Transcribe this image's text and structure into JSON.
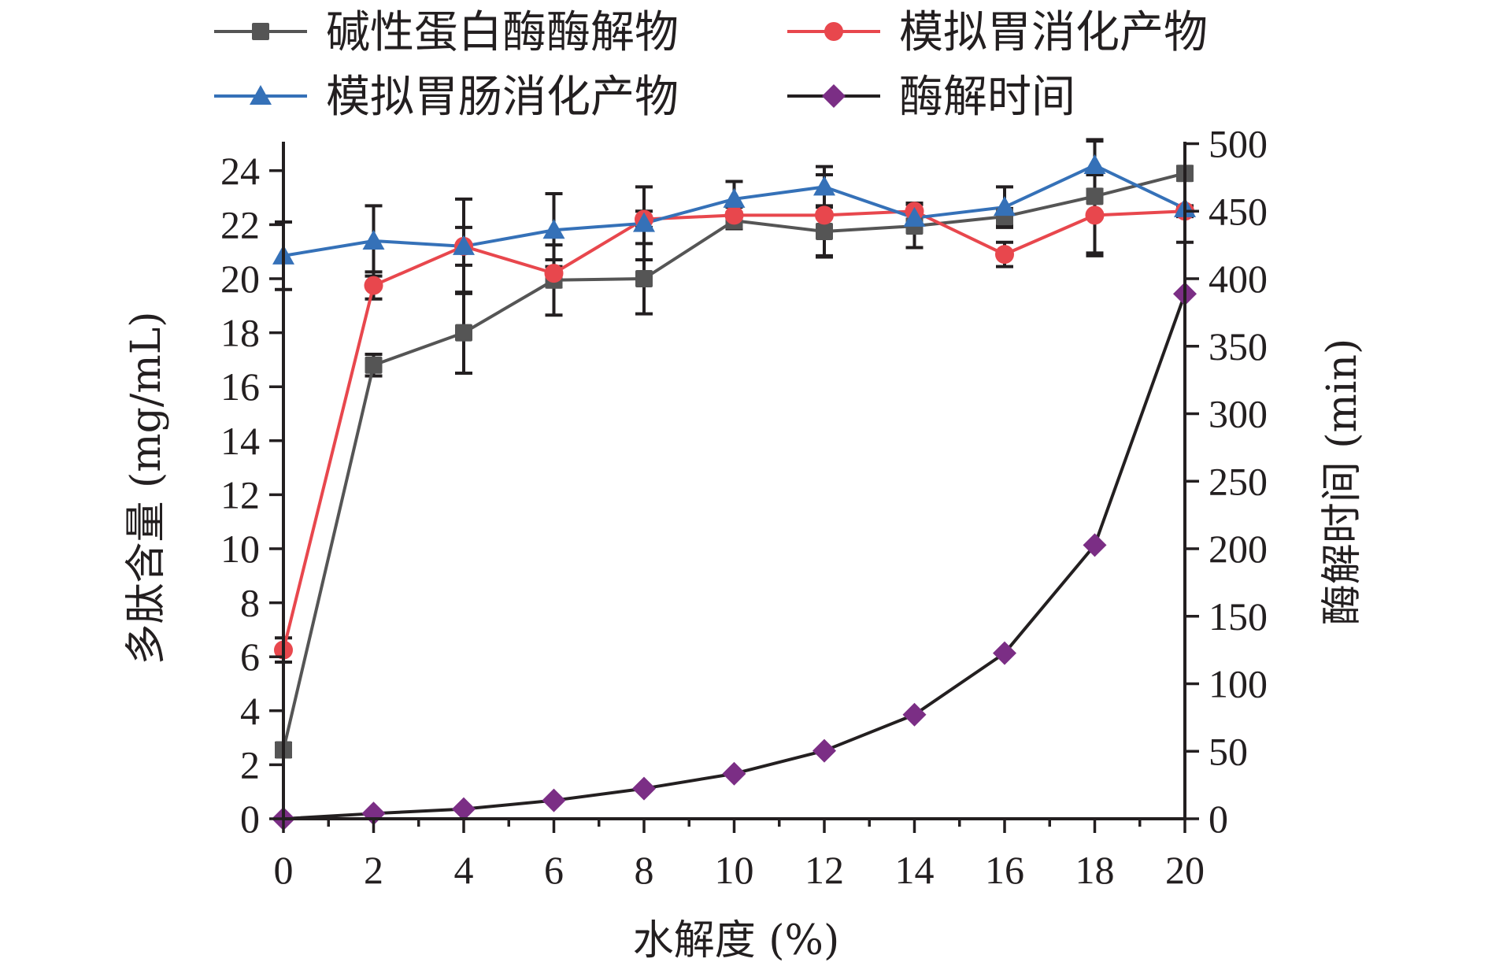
{
  "chart_data": {
    "type": "line",
    "title": "",
    "xlabel": "水解度 (%)",
    "ylabel_left": "多肽含量 (mg/mL)",
    "ylabel_right": "酶解时间 (min)",
    "x": [
      0,
      2,
      4,
      6,
      8,
      10,
      12,
      14,
      16,
      18,
      20
    ],
    "xlim": [
      0,
      20
    ],
    "ylim_left": [
      0,
      25
    ],
    "ylim_right": [
      0,
      500
    ],
    "x_ticks": [
      "0",
      "2",
      "4",
      "6",
      "8",
      "10",
      "12",
      "14",
      "16",
      "18",
      "20"
    ],
    "y_left_ticks": [
      "0",
      "2",
      "4",
      "6",
      "8",
      "10",
      "12",
      "14",
      "16",
      "18",
      "20",
      "22",
      "24"
    ],
    "y_right_ticks": [
      "0",
      "50",
      "100",
      "150",
      "200",
      "250",
      "300",
      "350",
      "400",
      "450",
      "500"
    ],
    "grid": false,
    "legend_position": "top",
    "series": [
      {
        "name": "碱性蛋白酶酶解物",
        "axis": "left",
        "marker": "square",
        "color": "#555555",
        "values": [
          2.55,
          16.8,
          18.0,
          19.95,
          20.0,
          22.15,
          21.75,
          21.95,
          22.3,
          23.05,
          23.9
        ],
        "errors": [
          0.25,
          0.4,
          1.5,
          1.3,
          1.3,
          0.3,
          0.95,
          0.8,
          0.3,
          2.1,
          0.25
        ]
      },
      {
        "name": "模拟胃消化产物",
        "axis": "left",
        "marker": "circle",
        "color": "#e8474d",
        "values": [
          6.25,
          19.75,
          21.2,
          20.2,
          22.2,
          22.35,
          22.35,
          22.5,
          20.9,
          22.35,
          22.5
        ],
        "errors": [
          0.45,
          0.5,
          0.7,
          0.5,
          0.3,
          0.3,
          1.5,
          0.3,
          0.45,
          1.5,
          0.2
        ]
      },
      {
        "name": "模拟胃肠消化产物",
        "axis": "left",
        "marker": "triangle",
        "color": "#3571b8",
        "values": [
          20.85,
          21.4,
          21.2,
          21.8,
          22.05,
          22.95,
          23.4,
          22.25,
          22.65,
          24.2,
          22.6
        ],
        "errors": [
          1.25,
          1.3,
          1.75,
          1.35,
          1.35,
          0.65,
          0.75,
          0.3,
          0.75,
          0.9,
          1.25
        ]
      },
      {
        "name": "酶解时间",
        "axis": "right",
        "marker": "diamond",
        "color": "#7b2e85",
        "line_color": "#231f20",
        "values": [
          0,
          3.9,
          7.2,
          13.6,
          22.4,
          33.4,
          50.4,
          77.1,
          122.7,
          202.7,
          388.8
        ]
      }
    ]
  }
}
